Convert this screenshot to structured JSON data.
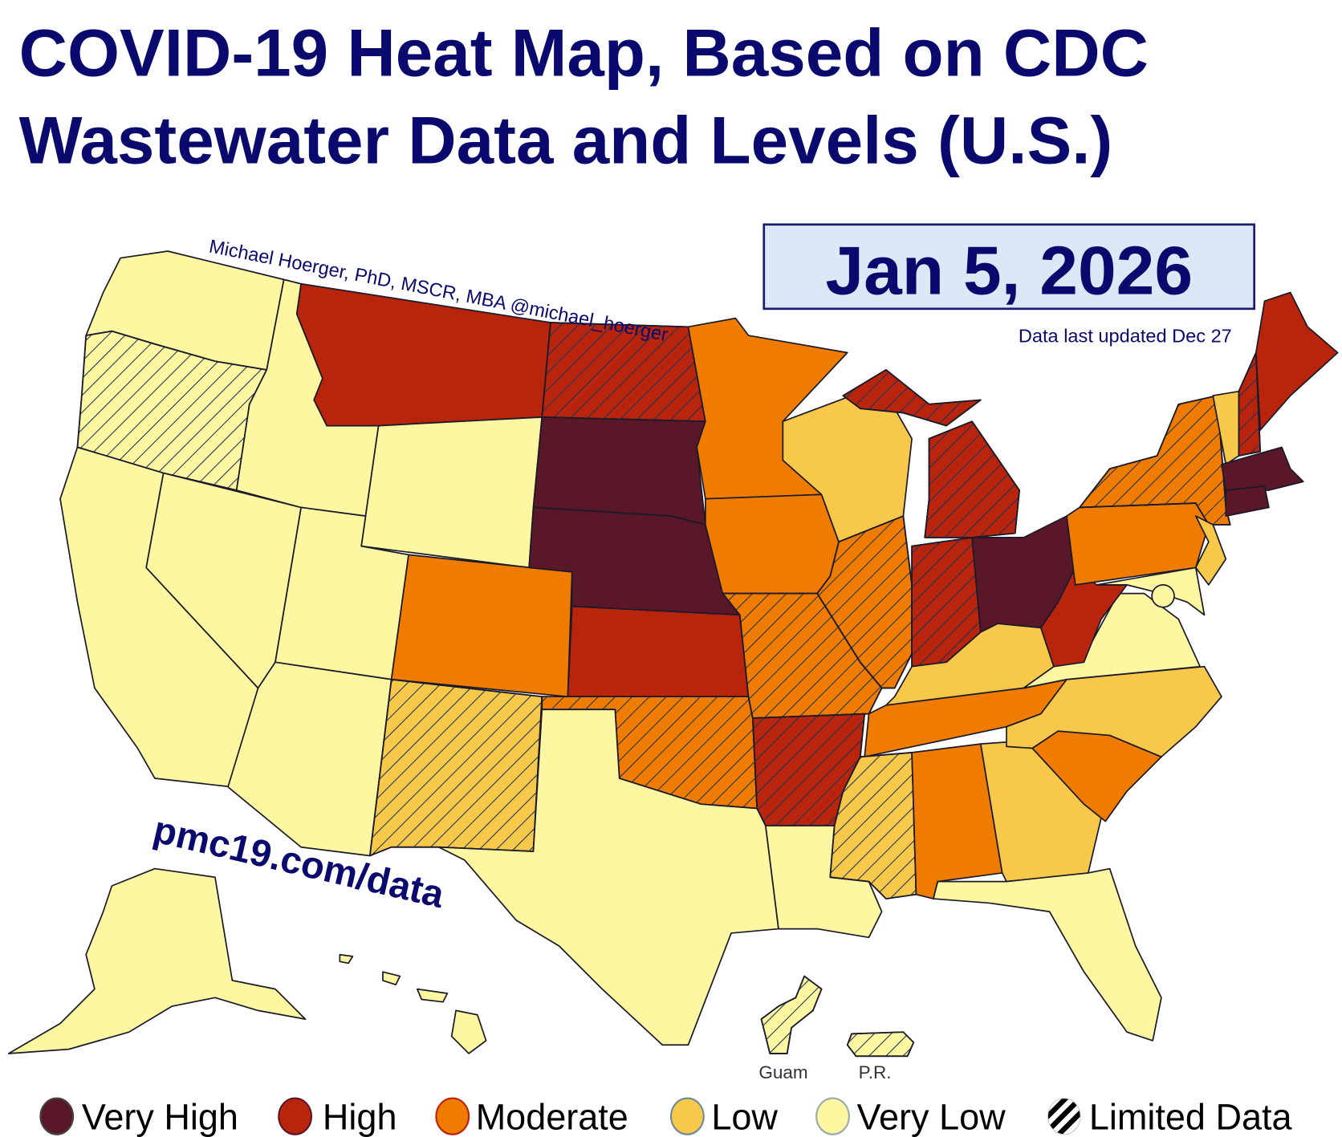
{
  "title": {
    "line1": "COVID-19 Heat Map, Based on CDC",
    "line2": "Wastewater Data and Levels (U.S.)"
  },
  "date": "Jan 5, 2026",
  "updated": "Data last updated Dec 27",
  "attribution": "Michael Hoerger, PhD, MSCR, MBA  @michael_hoerger",
  "url": "pmc19.com/data",
  "territories": {
    "guam": "Guam",
    "pr": "P.R."
  },
  "colors": {
    "very_high": "#5a1728",
    "high": "#b8240c",
    "moderate": "#ef7c00",
    "low": "#f8c84a",
    "very_low": "#fdf7a1",
    "hatch": "#1d3557"
  },
  "legend": [
    {
      "key": "very_high",
      "label": "Very High"
    },
    {
      "key": "high",
      "label": "High"
    },
    {
      "key": "moderate",
      "label": "Moderate"
    },
    {
      "key": "low",
      "label": "Low"
    },
    {
      "key": "very_low",
      "label": "Very Low"
    },
    {
      "key": "limited",
      "label": "Limited Data"
    }
  ],
  "states": {
    "WA": {
      "level": "very_low",
      "limited": false
    },
    "OR": {
      "level": "very_low",
      "limited": true
    },
    "CA": {
      "level": "very_low",
      "limited": false
    },
    "NV": {
      "level": "very_low",
      "limited": false
    },
    "ID": {
      "level": "very_low",
      "limited": false
    },
    "MT": {
      "level": "high",
      "limited": false
    },
    "WY": {
      "level": "very_low",
      "limited": false
    },
    "UT": {
      "level": "very_low",
      "limited": false
    },
    "AZ": {
      "level": "very_low",
      "limited": false
    },
    "CO": {
      "level": "moderate",
      "limited": false
    },
    "NM": {
      "level": "low",
      "limited": true
    },
    "ND": {
      "level": "high",
      "limited": true
    },
    "SD": {
      "level": "very_high",
      "limited": false
    },
    "NE": {
      "level": "very_high",
      "limited": false
    },
    "KS": {
      "level": "high",
      "limited": false
    },
    "OK": {
      "level": "moderate",
      "limited": true
    },
    "TX": {
      "level": "very_low",
      "limited": false
    },
    "MN": {
      "level": "moderate",
      "limited": false
    },
    "IA": {
      "level": "moderate",
      "limited": false
    },
    "MO": {
      "level": "moderate",
      "limited": true
    },
    "AR": {
      "level": "high",
      "limited": true
    },
    "LA": {
      "level": "very_low",
      "limited": false
    },
    "WI": {
      "level": "low",
      "limited": false
    },
    "IL": {
      "level": "moderate",
      "limited": true
    },
    "MI": {
      "level": "high",
      "limited": true
    },
    "IN": {
      "level": "high",
      "limited": true
    },
    "OH": {
      "level": "very_high",
      "limited": false
    },
    "KY": {
      "level": "low",
      "limited": false
    },
    "TN": {
      "level": "moderate",
      "limited": false
    },
    "MS": {
      "level": "low",
      "limited": true
    },
    "AL": {
      "level": "moderate",
      "limited": false
    },
    "GA": {
      "level": "low",
      "limited": false
    },
    "FL": {
      "level": "very_low",
      "limited": false
    },
    "SC": {
      "level": "moderate",
      "limited": false
    },
    "NC": {
      "level": "low",
      "limited": false
    },
    "VA": {
      "level": "very_low",
      "limited": false
    },
    "WV": {
      "level": "high",
      "limited": false
    },
    "PA": {
      "level": "moderate",
      "limited": false
    },
    "NY": {
      "level": "moderate",
      "limited": true
    },
    "NJ": {
      "level": "low",
      "limited": false
    },
    "MD": {
      "level": "very_low",
      "limited": false
    },
    "VT": {
      "level": "low",
      "limited": false
    },
    "NH": {
      "level": "high",
      "limited": true
    },
    "ME": {
      "level": "high",
      "limited": false
    },
    "MA": {
      "level": "very_high",
      "limited": false
    },
    "CT": {
      "level": "very_high",
      "limited": false
    },
    "AK": {
      "level": "very_low",
      "limited": false
    },
    "HI": {
      "level": "very_low",
      "limited": false
    },
    "GU": {
      "level": "very_low",
      "limited": true
    },
    "PR": {
      "level": "very_low",
      "limited": true
    },
    "DC": {
      "level": "very_low",
      "limited": false
    }
  }
}
